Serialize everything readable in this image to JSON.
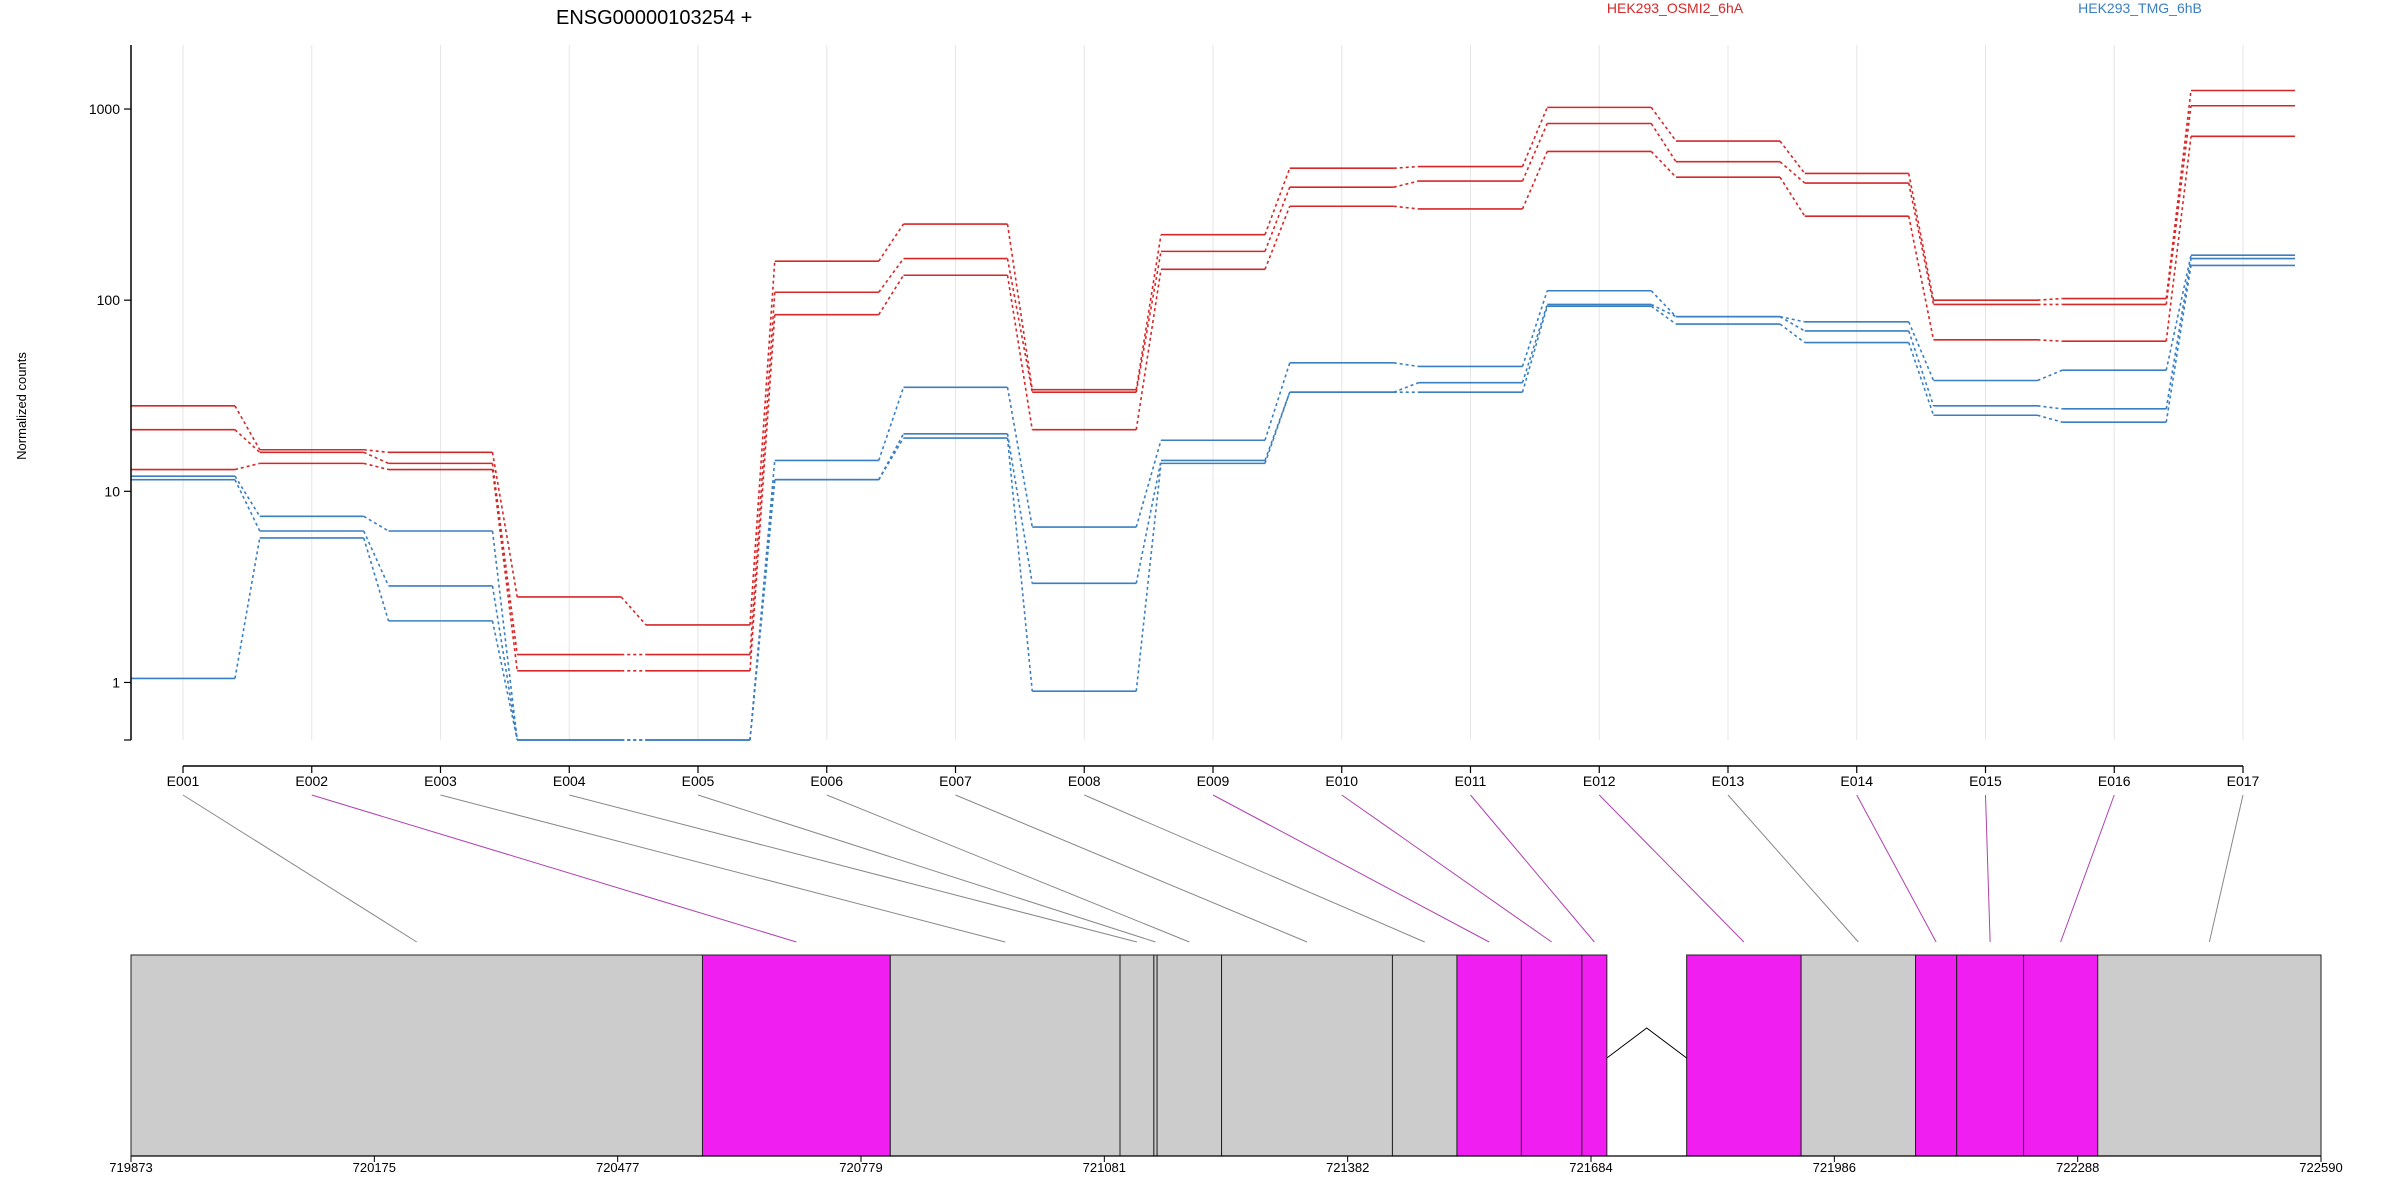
{
  "title": "ENSG00000103254 +",
  "legend": [
    {
      "name": "HEK293_OSMI2_6hA",
      "color": "#d62728"
    },
    {
      "name": "HEK293_TMG_6hB",
      "color": "#3a7fc1"
    }
  ],
  "colors": {
    "significant": "#f01ef0",
    "nonsignificant": "#cccccc",
    "grid": "#e6e6e6"
  },
  "chart_data": {
    "type": "line",
    "title": "ENSG00000103254 +",
    "ylabel": "Normalized counts",
    "yscale": "log",
    "ylim": [
      0.5,
      1600
    ],
    "yticks": [
      1,
      10,
      100,
      1000
    ],
    "ytick_labels": [
      "1",
      "10",
      "100",
      "1000"
    ],
    "categories": [
      "E001",
      "E002",
      "E003",
      "E004",
      "E005",
      "E006",
      "E007",
      "E008",
      "E009",
      "E010",
      "E011",
      "E012",
      "E013",
      "E014",
      "E015",
      "E016",
      "E017"
    ],
    "series": [
      {
        "name": "HEK293_OSMI2_6hA",
        "color": "#d62728",
        "values": [
          28,
          16.5,
          16,
          2.8,
          2,
          160,
          250,
          34,
          220,
          490,
          500,
          1020,
          680,
          460,
          100,
          102,
          1250
        ]
      },
      {
        "name": "HEK293_OSMI2_6hA",
        "color": "#d62728",
        "values": [
          21,
          16,
          14,
          1.4,
          1.4,
          110,
          165,
          33,
          180,
          390,
          420,
          840,
          530,
          410,
          95,
          95,
          1040
        ]
      },
      {
        "name": "HEK293_OSMI2_6hA",
        "color": "#d62728",
        "values": [
          13,
          14,
          13,
          1.15,
          1.15,
          84,
          135,
          21,
          145,
          310,
          300,
          600,
          440,
          275,
          62,
          61,
          720
        ]
      },
      {
        "name": "HEK293_TMG_6hB",
        "color": "#3a7fc1",
        "values": [
          12,
          7.4,
          6.2,
          0.5,
          0.5,
          14.5,
          35,
          6.5,
          18.5,
          47,
          45,
          112,
          82,
          77,
          38,
          43,
          172
        ]
      },
      {
        "name": "HEK293_TMG_6hB",
        "color": "#3a7fc1",
        "values": [
          11.5,
          6.2,
          3.2,
          0.5,
          0.5,
          11.5,
          20,
          3.3,
          14.5,
          33,
          37,
          95,
          82,
          69,
          28,
          27,
          165
        ]
      },
      {
        "name": "HEK293_TMG_6hB",
        "color": "#3a7fc1",
        "values": [
          1.05,
          5.7,
          2.1,
          0.5,
          0.5,
          11.5,
          19,
          0.9,
          14,
          33,
          33,
          93,
          75,
          60,
          25,
          23,
          152
        ]
      }
    ],
    "genomic_axis": {
      "tick_labels": [
        "719873",
        "720175",
        "720477",
        "720779",
        "721081",
        "721382",
        "721684",
        "721986",
        "722288",
        "722590"
      ],
      "range": [
        719873,
        722590
      ]
    },
    "exons": [
      {
        "id": "E001",
        "start": 719873,
        "end": 720582,
        "significant": false
      },
      {
        "id": "E002",
        "start": 720582,
        "end": 720815,
        "significant": true
      },
      {
        "id": "E003",
        "start": 720815,
        "end": 721100,
        "significant": false
      },
      {
        "id": "E004",
        "start": 721100,
        "end": 721142,
        "significant": false
      },
      {
        "id": "E005",
        "start": 721142,
        "end": 721146,
        "significant": false
      },
      {
        "id": "E006",
        "start": 721146,
        "end": 721226,
        "significant": false
      },
      {
        "id": "E007",
        "start": 721226,
        "end": 721438,
        "significant": false
      },
      {
        "id": "E008",
        "start": 721438,
        "end": 721518,
        "significant": false
      },
      {
        "id": "E009",
        "start": 721518,
        "end": 721598,
        "significant": true
      },
      {
        "id": "E010",
        "start": 721598,
        "end": 721673,
        "significant": true
      },
      {
        "id": "E011",
        "start": 721673,
        "end": 721704,
        "significant": true
      },
      {
        "id": "E012",
        "start": 721803,
        "end": 721945,
        "significant": true
      },
      {
        "id": "E013",
        "start": 721945,
        "end": 722087,
        "significant": false
      },
      {
        "id": "E014",
        "start": 722087,
        "end": 722138,
        "significant": true
      },
      {
        "id": "E015",
        "start": 722138,
        "end": 722221,
        "significant": true
      },
      {
        "id": "E016",
        "start": 722221,
        "end": 722313,
        "significant": true
      },
      {
        "id": "E017",
        "start": 722313,
        "end": 722590,
        "significant": false
      }
    ],
    "grid": true
  }
}
